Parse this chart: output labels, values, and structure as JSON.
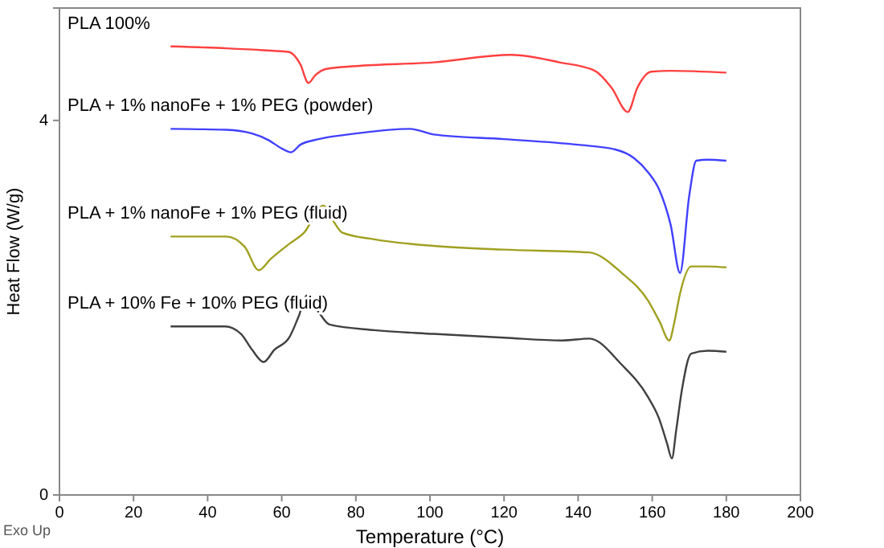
{
  "chart_data": {
    "type": "line",
    "xlabel": "Temperature (°C)",
    "ylabel": "Heat Flow (W/g)",
    "xlim": [
      0,
      200
    ],
    "xticks": [
      0,
      20,
      40,
      60,
      80,
      100,
      120,
      140,
      160,
      180,
      200
    ],
    "ylim": [
      0,
      5.2
    ],
    "yticks": [
      0,
      4
    ],
    "grid": false,
    "marker": "none",
    "line_style": "solid",
    "annotations": [
      "Exo Up"
    ],
    "series": [
      {
        "name": "PLA 100%",
        "color": "#ff4040",
        "x": [
          30,
          45,
          55,
          62,
          65,
          67.2,
          69,
          72,
          80,
          101,
          122,
          135,
          144.5,
          149,
          153.4,
          156,
          159.7,
          165,
          180
        ],
        "values": [
          4.79,
          4.77,
          4.75,
          4.73,
          4.6,
          4.4,
          4.48,
          4.55,
          4.58,
          4.62,
          4.7,
          4.62,
          4.53,
          4.35,
          4.09,
          4.35,
          4.52,
          4.53,
          4.51
        ]
      },
      {
        "name": "PLA + 1% nanoFe + 1% PEG (powder)",
        "color": "#4040ff",
        "x": [
          30,
          45,
          52,
          56.4,
          60,
          62.5,
          65,
          70,
          80,
          94.6,
          101,
          120,
          140,
          150,
          155,
          158.8,
          162,
          165,
          167.5,
          170,
          171.9,
          175,
          180
        ],
        "values": [
          3.91,
          3.9,
          3.86,
          3.79,
          3.7,
          3.66,
          3.74,
          3.8,
          3.86,
          3.91,
          3.85,
          3.8,
          3.74,
          3.69,
          3.6,
          3.45,
          3.25,
          2.88,
          2.37,
          3.2,
          3.57,
          3.58,
          3.57
        ]
      },
      {
        "name": "PLA + 1% nanoFe + 1% PEG (fluid)",
        "color": "#a0a020",
        "x": [
          30,
          45,
          50,
          53.8,
          57,
          62,
          66,
          71.2,
          74,
          76.4,
          85,
          101,
          120,
          143,
          151.8,
          158.8,
          162,
          164.6,
          166,
          167.5,
          170.5,
          175,
          180
        ],
        "values": [
          2.76,
          2.76,
          2.65,
          2.4,
          2.52,
          2.68,
          2.8,
          3.09,
          2.92,
          2.8,
          2.73,
          2.66,
          2.62,
          2.59,
          2.37,
          2.08,
          1.85,
          1.65,
          1.85,
          2.15,
          2.44,
          2.44,
          2.43
        ]
      },
      {
        "name": "PLA + 10% Fe + 10% PEG (fluid)",
        "color": "#404040",
        "x": [
          30,
          44.7,
          49,
          52,
          55.1,
          58,
          62,
          64.5,
          66.8,
          70,
          72.9,
          85,
          101,
          120,
          135.8,
          143,
          151.8,
          158.8,
          161.8,
          164,
          165.3,
          166.5,
          168,
          170.5,
          175,
          180
        ],
        "values": [
          1.8,
          1.8,
          1.72,
          1.55,
          1.42,
          1.55,
          1.68,
          1.9,
          2.13,
          1.95,
          1.82,
          1.76,
          1.72,
          1.68,
          1.65,
          1.67,
          1.39,
          1.05,
          0.82,
          0.55,
          0.39,
          0.7,
          1.12,
          1.51,
          1.54,
          1.53
        ]
      }
    ]
  }
}
